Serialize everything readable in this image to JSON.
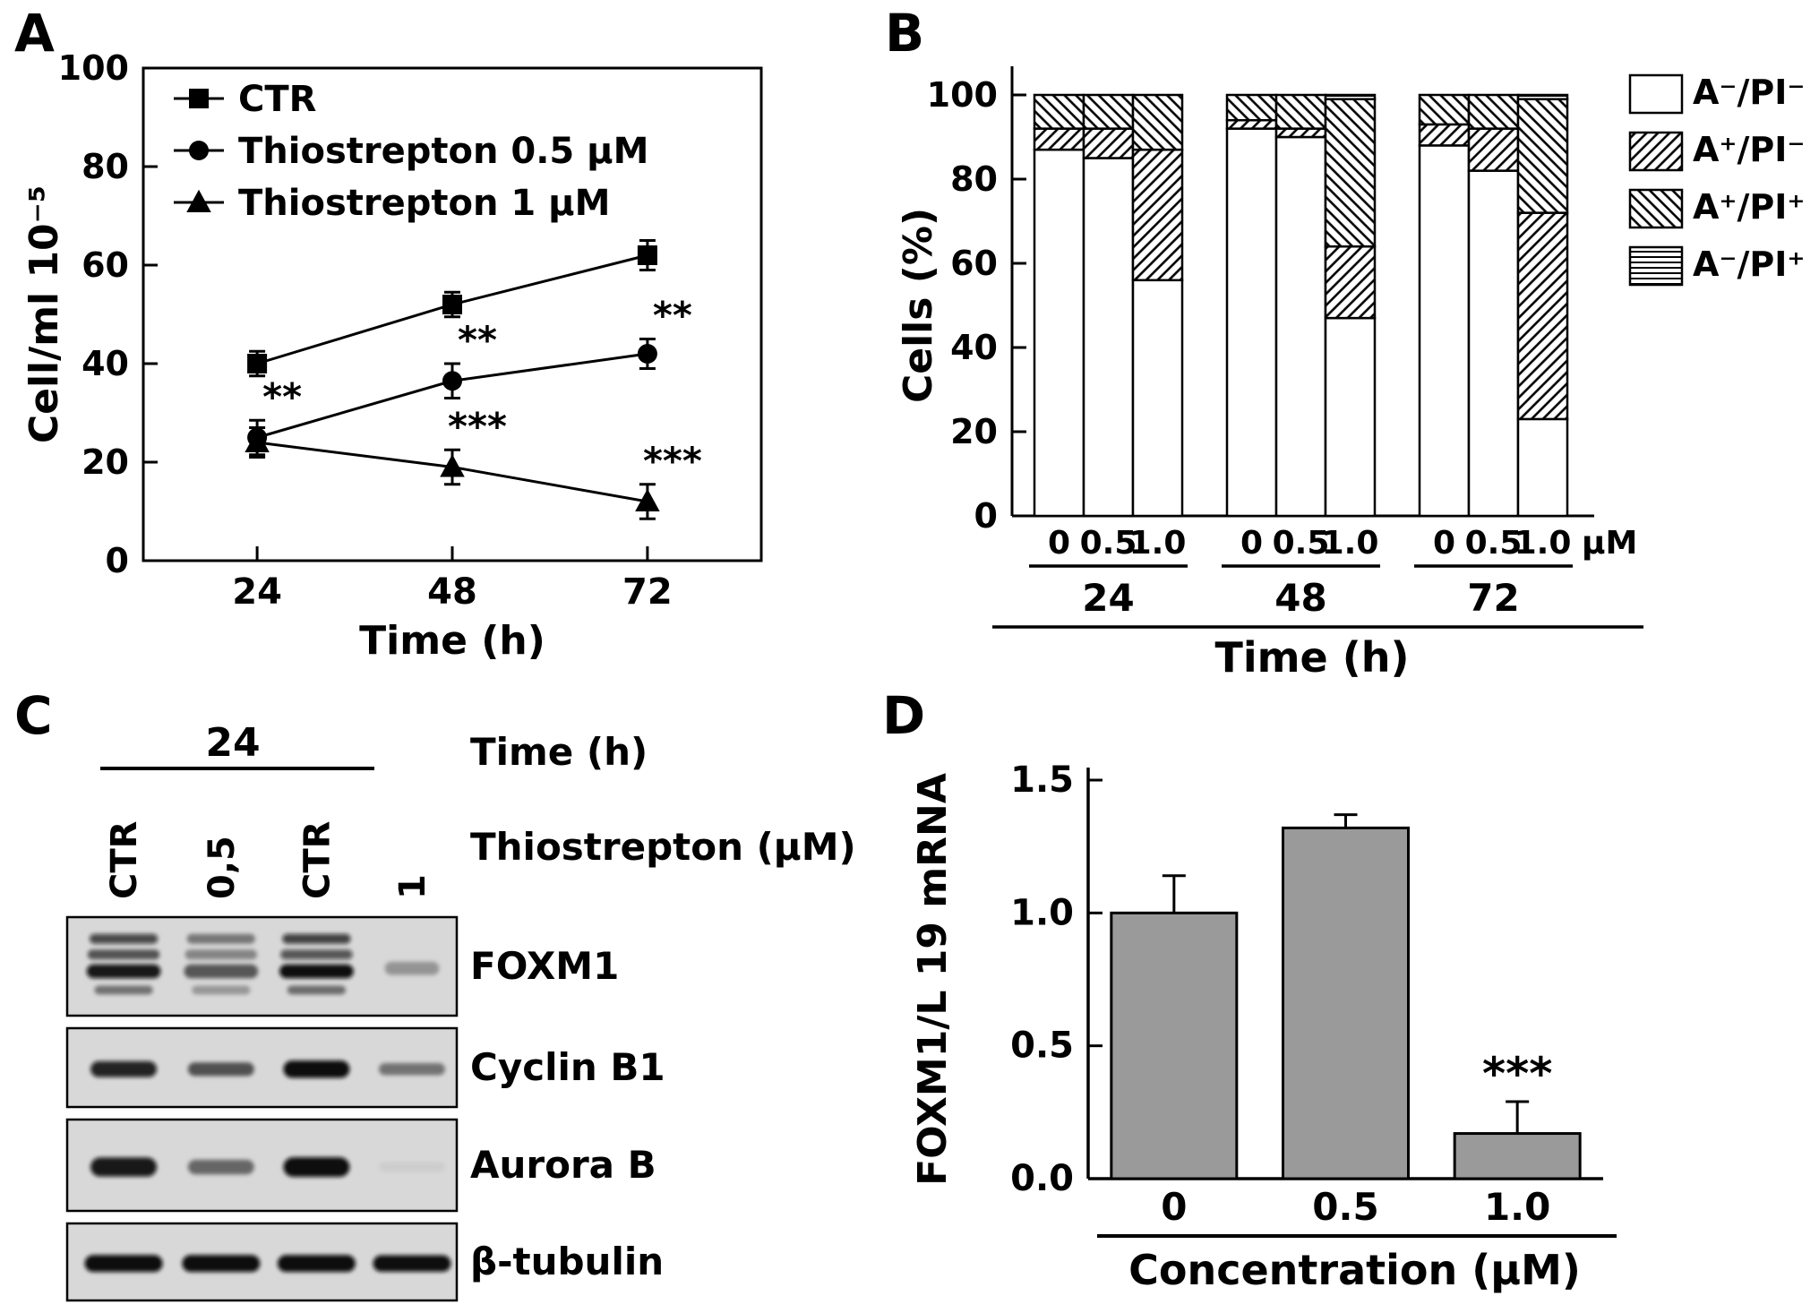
{
  "figure": {
    "background": "#ffffff",
    "panels": {
      "A": {
        "label": "A"
      },
      "B": {
        "label": "B"
      },
      "C": {
        "label": "C"
      },
      "D": {
        "label": "D"
      }
    }
  },
  "chart_data": [
    {
      "id": "panel-a",
      "type": "line",
      "xlabel": "Time (h)",
      "ylabel": "Cell/ml 10⁻⁵",
      "x": [
        24,
        48,
        72
      ],
      "xtick_labels": [
        "24",
        "48",
        "72"
      ],
      "xlim": [
        10,
        86
      ],
      "ylim": [
        0,
        100
      ],
      "yticks": [
        0,
        20,
        40,
        60,
        80,
        100
      ],
      "ytick_labels": [
        "0",
        "20",
        "40",
        "60",
        "80",
        "100"
      ],
      "legend_position": "top-left-inside",
      "line_color": "#000000",
      "series": [
        {
          "name": "CTR",
          "marker": "square",
          "values": [
            40,
            52,
            62
          ],
          "errors": [
            2.5,
            2.5,
            3
          ],
          "annotations": [
            "",
            "",
            ""
          ]
        },
        {
          "name": "Thiostrepton 0.5 µM",
          "marker": "circle",
          "values": [
            25,
            36.5,
            42
          ],
          "errors": [
            3.5,
            3.5,
            3
          ],
          "annotations": [
            "**",
            "**",
            "**"
          ]
        },
        {
          "name": "Thiostrepton 1 µM",
          "marker": "triangle",
          "values": [
            24,
            19,
            12
          ],
          "errors": [
            3,
            3.5,
            3.5
          ],
          "annotations": [
            "",
            "***",
            "***"
          ]
        }
      ]
    },
    {
      "id": "panel-b",
      "type": "stacked-bar",
      "ylabel": "Cells (%)",
      "xlabel": "Time (h)",
      "unit_label": "µM",
      "ylim": [
        0,
        100
      ],
      "yticks": [
        0,
        20,
        40,
        60,
        80,
        100
      ],
      "ytick_labels": [
        "0",
        "20",
        "40",
        "60",
        "80",
        "100"
      ],
      "groups": [
        "24",
        "48",
        "72"
      ],
      "bar_labels": [
        "0",
        "0.5",
        "1.0"
      ],
      "legend": [
        {
          "label": "A⁻/PI⁻",
          "pattern": "solid-white"
        },
        {
          "label": "A⁺/PI⁻",
          "pattern": "hatch-forward"
        },
        {
          "label": "A⁺/PI⁺",
          "pattern": "hatch-backward"
        },
        {
          "label": "A⁻/PI⁺",
          "pattern": "hatch-horizontal"
        }
      ],
      "series": [
        {
          "name": "A⁻/PI⁻",
          "pattern": "solid-white",
          "values": [
            [
              87,
              85,
              56
            ],
            [
              92,
              90,
              47
            ],
            [
              88,
              82,
              23
            ]
          ]
        },
        {
          "name": "A⁺/PI⁻",
          "pattern": "hatch-forward",
          "values": [
            [
              5,
              7,
              31
            ],
            [
              2,
              2,
              17
            ],
            [
              5,
              10,
              49
            ]
          ]
        },
        {
          "name": "A⁺/PI⁺",
          "pattern": "hatch-backward",
          "values": [
            [
              8,
              8,
              13
            ],
            [
              6,
              8,
              35
            ],
            [
              7,
              8,
              27
            ]
          ]
        },
        {
          "name": "A⁻/PI⁺",
          "pattern": "hatch-horizontal",
          "values": [
            [
              0,
              0,
              0
            ],
            [
              0,
              0,
              1
            ],
            [
              0,
              0,
              1
            ]
          ]
        }
      ]
    },
    {
      "id": "panel-c",
      "type": "western-blot",
      "time_header": {
        "label": "Time (h)",
        "value": "24"
      },
      "treatment_label": "Thiostrepton (µM)",
      "lanes": [
        "CTR",
        "0,5",
        "CTR",
        "1"
      ],
      "rows": [
        {
          "name": "FOXM1",
          "multi_band": true,
          "intensities": [
            0.95,
            0.6,
            1.0,
            0.3
          ]
        },
        {
          "name": "Cyclin B1",
          "multi_band": false,
          "intensities": [
            0.85,
            0.6,
            1.0,
            0.45
          ]
        },
        {
          "name": "Aurora B",
          "multi_band": false,
          "intensities": [
            0.9,
            0.5,
            0.95,
            0.05
          ]
        },
        {
          "name": "β-tubulin",
          "multi_band": false,
          "intensities": [
            1.0,
            1.0,
            1.0,
            0.95
          ]
        }
      ]
    },
    {
      "id": "panel-d",
      "type": "bar",
      "ylabel": "FOXM1/L 19 mRNA",
      "xlabel": "Concentration (µM)",
      "categories": [
        "0",
        "0.5",
        "1.0"
      ],
      "values": [
        1.0,
        1.32,
        0.17
      ],
      "errors": [
        0.14,
        0.05,
        0.12
      ],
      "annotations": [
        "",
        "",
        "***"
      ],
      "ylim": [
        0,
        1.5
      ],
      "yticks": [
        0,
        0.5,
        1.0,
        1.5
      ],
      "ytick_labels": [
        "0.0",
        "0.5",
        "1.0",
        "1.5"
      ],
      "bar_color": "#9a9a9a"
    }
  ]
}
